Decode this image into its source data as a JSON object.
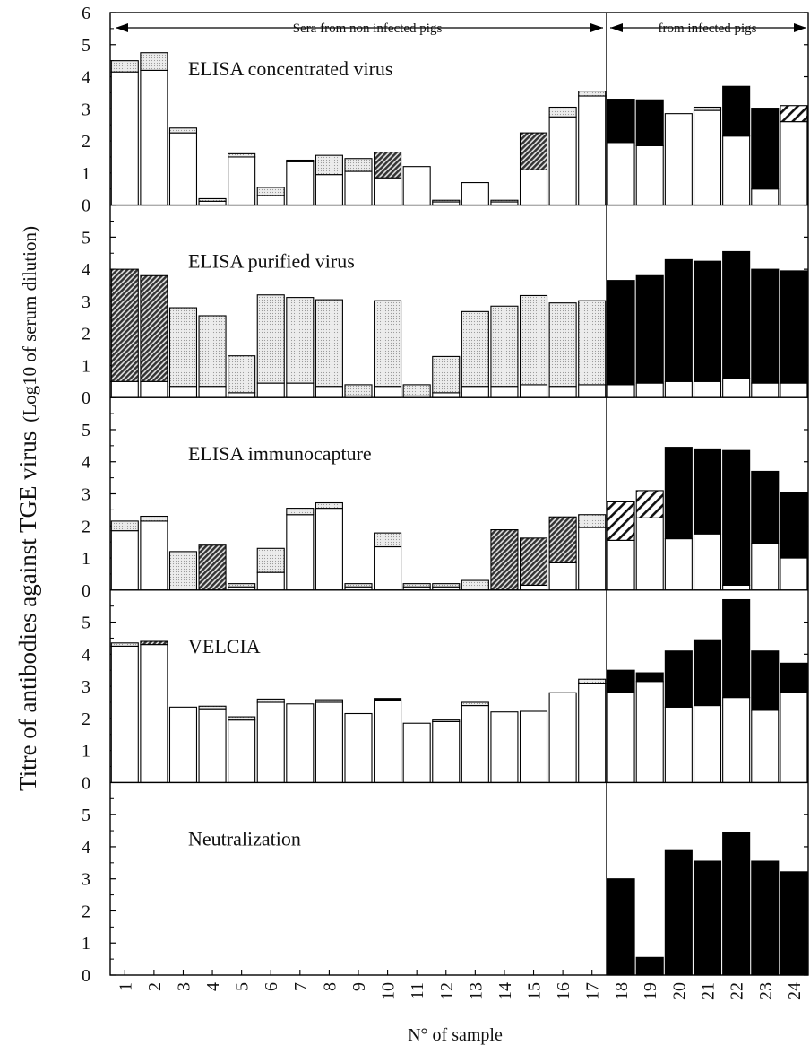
{
  "chart_data": {
    "type": "bar",
    "stacked": true,
    "ylabel_main": "Titre of antibodies against TGE virus",
    "ylabel_sub": "(Log10 of serum dilution)",
    "xlabel": "N° of sample",
    "categories": [
      "1",
      "2",
      "3",
      "4",
      "5",
      "6",
      "7",
      "8",
      "9",
      "10",
      "11",
      "12",
      "13",
      "14",
      "15",
      "16",
      "17",
      "18",
      "19",
      "20",
      "21",
      "22",
      "23",
      "24"
    ],
    "group_labels": {
      "non_infected": "Sera from non infected pigs",
      "infected": "from infected pigs"
    },
    "legend": "none",
    "grid": false,
    "fill_colors": {
      "white": "#ffffff",
      "dotted": "#e4e4e4",
      "dark_hatch": "#4a4a4a",
      "hatch": "#ffffff",
      "black": "#000000"
    },
    "panels": [
      {
        "title": "ELISA concentrated virus",
        "ylim": [
          0,
          6
        ],
        "yticks": [
          "0",
          "1",
          "2",
          "3",
          "4",
          "5",
          "6"
        ],
        "bars": [
          {
            "base": 4.15,
            "top": 4.5,
            "fill": "dotted"
          },
          {
            "base": 4.2,
            "top": 4.75,
            "fill": "dotted"
          },
          {
            "base": 2.25,
            "top": 2.4,
            "fill": "dotted"
          },
          {
            "base": 0.12,
            "top": 0.2,
            "fill": "dotted"
          },
          {
            "base": 1.5,
            "top": 1.6,
            "fill": "dotted"
          },
          {
            "base": 0.3,
            "top": 0.55,
            "fill": "dotted"
          },
          {
            "base": 1.35,
            "top": 1.4,
            "fill": "dotted"
          },
          {
            "base": 0.95,
            "top": 1.55,
            "fill": "dotted"
          },
          {
            "base": 1.05,
            "top": 1.45,
            "fill": "dotted"
          },
          {
            "base": 0.85,
            "top": 1.65,
            "fill": "dark_hatch"
          },
          {
            "base": 1.2,
            "top": 1.2,
            "fill": "dotted"
          },
          {
            "base": 0.1,
            "top": 0.15,
            "fill": "dotted"
          },
          {
            "base": 0.7,
            "top": 0.7,
            "fill": "dotted"
          },
          {
            "base": 0.1,
            "top": 0.15,
            "fill": "dotted"
          },
          {
            "base": 1.1,
            "top": 2.25,
            "fill": "dark_hatch"
          },
          {
            "base": 2.75,
            "top": 3.05,
            "fill": "dotted"
          },
          {
            "base": 3.4,
            "top": 3.55,
            "fill": "dotted"
          },
          {
            "base": 1.95,
            "top": 3.3,
            "fill": "black"
          },
          {
            "base": 1.85,
            "top": 3.28,
            "fill": "black"
          },
          {
            "base": 2.85,
            "top": 2.85,
            "fill": "dotted"
          },
          {
            "base": 2.95,
            "top": 3.05,
            "fill": "dotted"
          },
          {
            "base": 2.15,
            "top": 3.7,
            "fill": "black"
          },
          {
            "base": 0.5,
            "top": 3.02,
            "fill": "black"
          },
          {
            "base": 2.6,
            "top": 3.1,
            "fill": "hatch"
          }
        ]
      },
      {
        "title": "ELISA purified virus",
        "ylim": [
          0,
          6
        ],
        "yticks": [
          "0",
          "1",
          "2",
          "3",
          "4",
          "5"
        ],
        "bars": [
          {
            "base": 0.5,
            "top": 4.0,
            "fill": "dark_hatch"
          },
          {
            "base": 0.5,
            "top": 3.8,
            "fill": "dark_hatch"
          },
          {
            "base": 0.35,
            "top": 2.8,
            "fill": "dotted"
          },
          {
            "base": 0.35,
            "top": 2.55,
            "fill": "dotted"
          },
          {
            "base": 0.15,
            "top": 1.3,
            "fill": "dotted"
          },
          {
            "base": 0.45,
            "top": 3.2,
            "fill": "dotted"
          },
          {
            "base": 0.45,
            "top": 3.12,
            "fill": "dotted"
          },
          {
            "base": 0.35,
            "top": 3.05,
            "fill": "dotted"
          },
          {
            "base": 0.05,
            "top": 0.4,
            "fill": "dotted"
          },
          {
            "base": 0.35,
            "top": 3.02,
            "fill": "dotted"
          },
          {
            "base": 0.05,
            "top": 0.4,
            "fill": "dotted"
          },
          {
            "base": 0.15,
            "top": 1.28,
            "fill": "dotted"
          },
          {
            "base": 0.35,
            "top": 2.68,
            "fill": "dotted"
          },
          {
            "base": 0.35,
            "top": 2.85,
            "fill": "dotted"
          },
          {
            "base": 0.4,
            "top": 3.18,
            "fill": "dotted"
          },
          {
            "base": 0.35,
            "top": 2.95,
            "fill": "dotted"
          },
          {
            "base": 0.4,
            "top": 3.02,
            "fill": "dotted"
          },
          {
            "base": 0.4,
            "top": 3.65,
            "fill": "black"
          },
          {
            "base": 0.45,
            "top": 3.8,
            "fill": "black"
          },
          {
            "base": 0.5,
            "top": 4.3,
            "fill": "black"
          },
          {
            "base": 0.5,
            "top": 4.25,
            "fill": "black"
          },
          {
            "base": 0.6,
            "top": 4.55,
            "fill": "black"
          },
          {
            "base": 0.45,
            "top": 4.0,
            "fill": "black"
          },
          {
            "base": 0.45,
            "top": 3.95,
            "fill": "black"
          }
        ]
      },
      {
        "title": "ELISA immunocapture",
        "ylim": [
          0,
          6
        ],
        "yticks": [
          "0",
          "1",
          "2",
          "3",
          "4",
          "5"
        ],
        "bars": [
          {
            "base": 1.85,
            "top": 2.15,
            "fill": "dotted"
          },
          {
            "base": 2.15,
            "top": 2.3,
            "fill": "dotted"
          },
          {
            "base": 0,
            "top": 1.2,
            "fill": "dotted"
          },
          {
            "base": 0,
            "top": 1.4,
            "fill": "dark_hatch"
          },
          {
            "base": 0.1,
            "top": 0.2,
            "fill": "dotted"
          },
          {
            "base": 0.55,
            "top": 1.3,
            "fill": "dotted"
          },
          {
            "base": 2.35,
            "top": 2.55,
            "fill": "dotted"
          },
          {
            "base": 2.55,
            "top": 2.72,
            "fill": "dotted"
          },
          {
            "base": 0.1,
            "top": 0.2,
            "fill": "dotted"
          },
          {
            "base": 1.35,
            "top": 1.78,
            "fill": "dotted"
          },
          {
            "base": 0.1,
            "top": 0.2,
            "fill": "dotted"
          },
          {
            "base": 0.1,
            "top": 0.2,
            "fill": "dotted"
          },
          {
            "base": 0,
            "top": 0.3,
            "fill": "dotted"
          },
          {
            "base": 0,
            "top": 1.88,
            "fill": "dark_hatch"
          },
          {
            "base": 0.15,
            "top": 1.62,
            "fill": "dark_hatch"
          },
          {
            "base": 0.85,
            "top": 2.28,
            "fill": "dark_hatch"
          },
          {
            "base": 1.95,
            "top": 2.35,
            "fill": "dotted"
          },
          {
            "base": 1.55,
            "top": 2.75,
            "fill": "hatch"
          },
          {
            "base": 2.25,
            "top": 3.1,
            "fill": "hatch"
          },
          {
            "base": 1.6,
            "top": 4.45,
            "fill": "black"
          },
          {
            "base": 1.75,
            "top": 4.4,
            "fill": "black"
          },
          {
            "base": 0.15,
            "top": 4.35,
            "fill": "black"
          },
          {
            "base": 1.45,
            "top": 3.7,
            "fill": "black"
          },
          {
            "base": 1.0,
            "top": 3.05,
            "fill": "black"
          }
        ]
      },
      {
        "title": "VELCIA",
        "ylim": [
          0,
          6
        ],
        "yticks": [
          "0",
          "1",
          "2",
          "3",
          "4",
          "5"
        ],
        "bars": [
          {
            "base": 4.25,
            "top": 4.35,
            "fill": "dotted"
          },
          {
            "base": 4.3,
            "top": 4.4,
            "fill": "dark_hatch"
          },
          {
            "base": 2.35,
            "top": 2.35,
            "fill": "dotted"
          },
          {
            "base": 2.3,
            "top": 2.38,
            "fill": "dotted"
          },
          {
            "base": 1.95,
            "top": 2.05,
            "fill": "dotted"
          },
          {
            "base": 2.5,
            "top": 2.6,
            "fill": "dotted"
          },
          {
            "base": 2.45,
            "top": 2.45,
            "fill": "dotted"
          },
          {
            "base": 2.5,
            "top": 2.58,
            "fill": "dotted"
          },
          {
            "base": 2.15,
            "top": 2.15,
            "fill": "dotted"
          },
          {
            "base": 2.55,
            "top": 2.62,
            "fill": "black"
          },
          {
            "base": 1.85,
            "top": 1.85,
            "fill": "dotted"
          },
          {
            "base": 1.9,
            "top": 1.95,
            "fill": "dotted"
          },
          {
            "base": 2.4,
            "top": 2.5,
            "fill": "dotted"
          },
          {
            "base": 2.2,
            "top": 2.2,
            "fill": "dotted"
          },
          {
            "base": 2.22,
            "top": 2.22,
            "fill": "dotted"
          },
          {
            "base": 2.8,
            "top": 2.8,
            "fill": "dotted"
          },
          {
            "base": 3.1,
            "top": 3.22,
            "fill": "dotted"
          },
          {
            "base": 2.8,
            "top": 3.5,
            "fill": "black"
          },
          {
            "base": 3.15,
            "top": 3.42,
            "fill": "black"
          },
          {
            "base": 2.35,
            "top": 4.1,
            "fill": "black"
          },
          {
            "base": 2.4,
            "top": 4.45,
            "fill": "black"
          },
          {
            "base": 2.65,
            "top": 5.7,
            "fill": "black"
          },
          {
            "base": 2.25,
            "top": 4.1,
            "fill": "black"
          },
          {
            "base": 2.8,
            "top": 3.72,
            "fill": "black"
          }
        ]
      },
      {
        "title": "Neutralization",
        "ylim": [
          0,
          6
        ],
        "yticks": [
          "0",
          "1",
          "2",
          "3",
          "4",
          "5"
        ],
        "bars": [
          null,
          null,
          null,
          null,
          null,
          null,
          null,
          null,
          null,
          null,
          null,
          null,
          null,
          null,
          null,
          null,
          null,
          {
            "base": 0,
            "top": 3.0,
            "fill": "black"
          },
          {
            "base": 0,
            "top": 0.55,
            "fill": "black"
          },
          {
            "base": 0,
            "top": 3.88,
            "fill": "black"
          },
          {
            "base": 0,
            "top": 3.55,
            "fill": "black"
          },
          {
            "base": 0,
            "top": 4.45,
            "fill": "black"
          },
          {
            "base": 0,
            "top": 3.55,
            "fill": "black"
          },
          {
            "base": 0,
            "top": 3.22,
            "fill": "black"
          }
        ]
      }
    ]
  }
}
